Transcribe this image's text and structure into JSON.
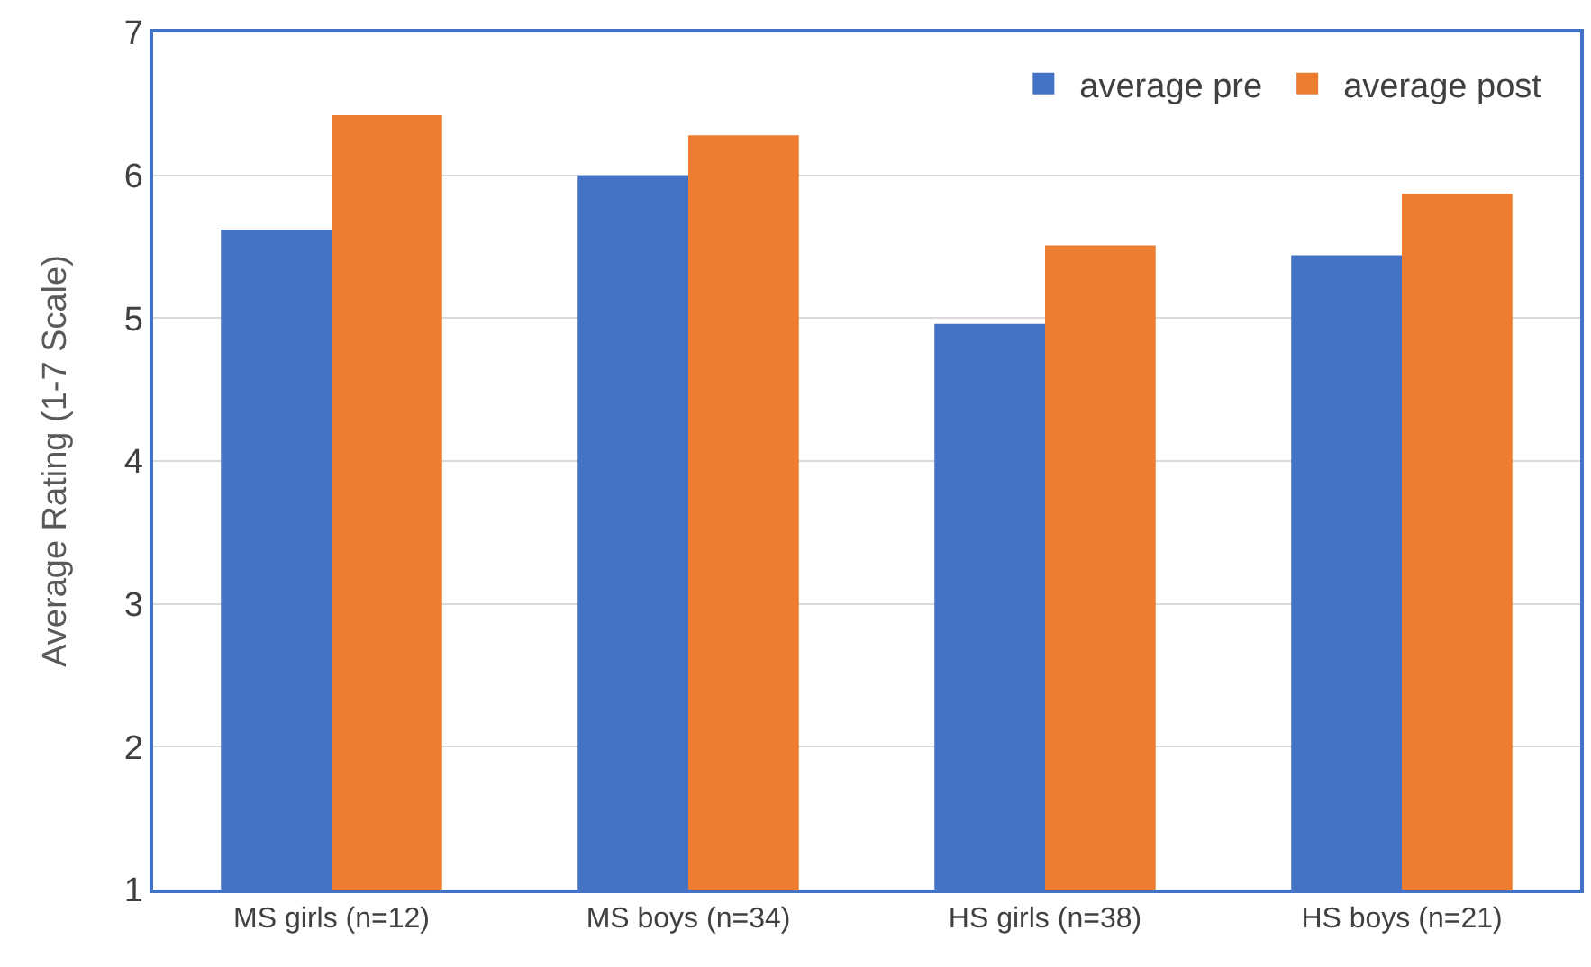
{
  "chart_data": {
    "type": "bar",
    "ylabel": "Average Rating (1-7 Scale)",
    "categories": [
      "MS girls (n=12)",
      "MS boys (n=34)",
      "HS girls (n=38)",
      "HS boys (n=21)"
    ],
    "series": [
      {
        "name": "average pre",
        "color": "#4472c4",
        "values": [
          5.62,
          6.0,
          4.96,
          5.44
        ]
      },
      {
        "name": "average post",
        "color": "#ed7d31",
        "values": [
          6.42,
          6.28,
          5.51,
          5.87
        ]
      }
    ],
    "ylim": [
      1,
      7
    ],
    "yticks": [
      1,
      2,
      3,
      4,
      5,
      6,
      7
    ],
    "grid": "y",
    "legend": "top right"
  }
}
